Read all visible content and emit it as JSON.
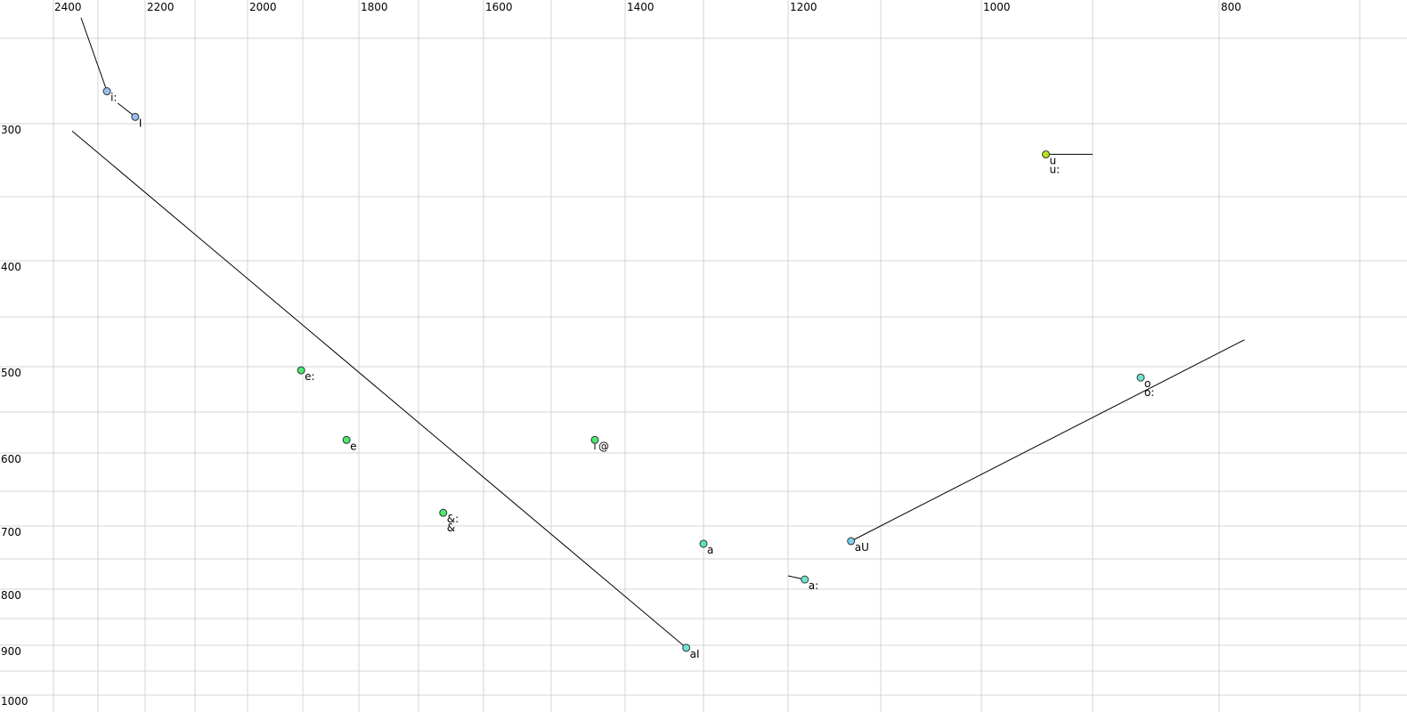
{
  "chart_data": {
    "type": "scatter",
    "title": "",
    "xlabel": "",
    "ylabel": "",
    "x_reversed": true,
    "y_reversed": true,
    "grid": true,
    "x_gridlines": [
      2400,
      2300,
      2200,
      2100,
      2000,
      1900,
      1800,
      1700,
      1600,
      1500,
      1400,
      1300,
      1200,
      1100,
      1000,
      900,
      800,
      700
    ],
    "y_gridlines": [
      250,
      300,
      350,
      400,
      450,
      500,
      550,
      600,
      650,
      700,
      750,
      800,
      850,
      900,
      950,
      1000
    ],
    "x_ticks": [
      "2400",
      "2200",
      "2000",
      "1800",
      "1600",
      "1400",
      "1200",
      "1000",
      "800"
    ],
    "y_ticks": [
      "300",
      "400",
      "500",
      "600",
      "700",
      "800",
      "900",
      "1000"
    ],
    "points": [
      {
        "labels": [
          "i:"
        ],
        "f2": 2281,
        "f1": 281,
        "color": "#9cbcf4",
        "track": [
          [
            2338,
            238
          ],
          [
            2281,
            281
          ]
        ]
      },
      {
        "labels": [
          "I"
        ],
        "f2": 2221,
        "f1": 296,
        "color": "#9cbcf4",
        "track": [
          [
            2258,
            288
          ],
          [
            2221,
            296
          ]
        ]
      },
      {
        "labels": [
          "u",
          "u:"
        ],
        "f2": 942,
        "f1": 321,
        "color": "#b4e41c",
        "track": [
          [
            942,
            321
          ],
          [
            900,
            321
          ]
        ]
      },
      {
        "labels": [
          "e:"
        ],
        "f2": 1903,
        "f1": 504,
        "color": "#4ce870"
      },
      {
        "labels": [
          "e"
        ],
        "f2": 1822,
        "f1": 584,
        "color": "#4ce870"
      },
      {
        "labels": [
          "@"
        ],
        "f2": 1441,
        "f1": 584,
        "color": "#4ce870",
        "track": [
          [
            1441,
            584
          ],
          [
            1441,
            596
          ]
        ]
      },
      {
        "labels": [
          "&:",
          "&"
        ],
        "f2": 1662,
        "f1": 681,
        "color": "#4ce870"
      },
      {
        "labels": [
          "a"
        ],
        "f2": 1300,
        "f1": 727,
        "color": "#5ce8a8",
        "track": [
          [
            1300,
            727
          ],
          [
            1300,
            733
          ]
        ]
      },
      {
        "labels": [
          "a:"
        ],
        "f2": 1182,
        "f1": 784,
        "color": "#70e4d4",
        "track": [
          [
            1200,
            778
          ],
          [
            1182,
            784
          ]
        ]
      },
      {
        "labels": [
          "aU"
        ],
        "f2": 1132,
        "f1": 723,
        "color": "#7cd0ec",
        "track": [
          [
            1132,
            723
          ],
          [
            782,
            473
          ]
        ]
      },
      {
        "labels": [
          "aI"
        ],
        "f2": 1322,
        "f1": 905,
        "color": "#70e4d4",
        "track": [
          [
            1322,
            905
          ],
          [
            2358,
            305
          ]
        ]
      },
      {
        "labels": [
          "o",
          "o:"
        ],
        "f2": 862,
        "f1": 512,
        "color": "#70e4d4"
      }
    ]
  }
}
